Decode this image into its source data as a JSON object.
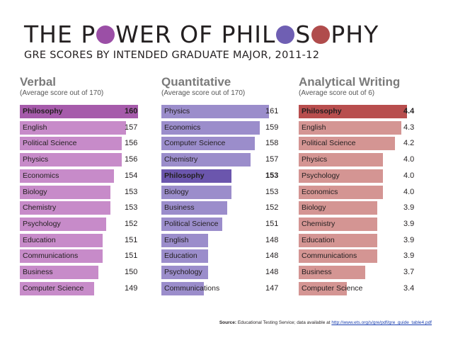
{
  "header": {
    "title_parts": [
      "THE P",
      "WER OF PHIL",
      "S",
      "PHY"
    ],
    "title_o_colors": [
      "#9b4fa6",
      "#6f5fb3",
      "#b04c4c"
    ],
    "subtitle": "GRE SCORES BY INTENDED GRADUATE MAJOR, 2011-12"
  },
  "source": {
    "label": "Source:",
    "text": "Educational Testing Service; data available at",
    "link": "http://www.ets.org/s/gre/pdf/gre_guide_table4.pdf"
  },
  "chart_data": [
    {
      "type": "bar",
      "title": "Verbal",
      "subtitle": "(Average score out of 170)",
      "colors": {
        "bar": "#c78bc9",
        "highlight": "#a65bab"
      },
      "highlight": "Philosophy",
      "xlim": [
        130,
        161
      ],
      "categories": [
        "Philosophy",
        "English",
        "Political Science",
        "Physics",
        "Economics",
        "Biology",
        "Chemistry",
        "Psychology",
        "Education",
        "Communications",
        "Business",
        "Computer Science"
      ],
      "values": [
        "160",
        "157",
        "156",
        "156",
        "154",
        "153",
        "153",
        "152",
        "151",
        "151",
        "150",
        "149"
      ]
    },
    {
      "type": "bar",
      "title": "Quantitative",
      "subtitle": "(Average score out of 170)",
      "colors": {
        "bar": "#9b8dcb",
        "highlight": "#6b56ad"
      },
      "highlight": "Philosophy",
      "xlim": [
        138,
        164
      ],
      "categories": [
        "Physics",
        "Economics",
        "Computer Science",
        "Chemistry",
        "Philosophy",
        "Biology",
        "Business",
        "Political Science",
        "English",
        "Education",
        "Psychology",
        "Communications"
      ],
      "values": [
        "161",
        "159",
        "158",
        "157",
        "153",
        "153",
        "152",
        "151",
        "148",
        "148",
        "148",
        "147"
      ]
    },
    {
      "type": "bar",
      "title": "Analytical Writing",
      "subtitle": "(Average score out of 6)",
      "colors": {
        "bar": "#d49593",
        "highlight": "#b84e4e"
      },
      "highlight": "Philosophy",
      "xlim": [
        2.6,
        4.6
      ],
      "categories": [
        "Philosophy",
        "English",
        "Political Science",
        "Physics",
        "Psychology",
        "Economics",
        "Biology",
        "Chemistry",
        "Education",
        "Communications",
        "Business",
        "Computer Science"
      ],
      "values": [
        "4.4",
        "4.3",
        "4.2",
        "4.0",
        "4.0",
        "4.0",
        "3.9",
        "3.9",
        "3.9",
        "3.9",
        "3.7",
        "3.4"
      ]
    }
  ]
}
